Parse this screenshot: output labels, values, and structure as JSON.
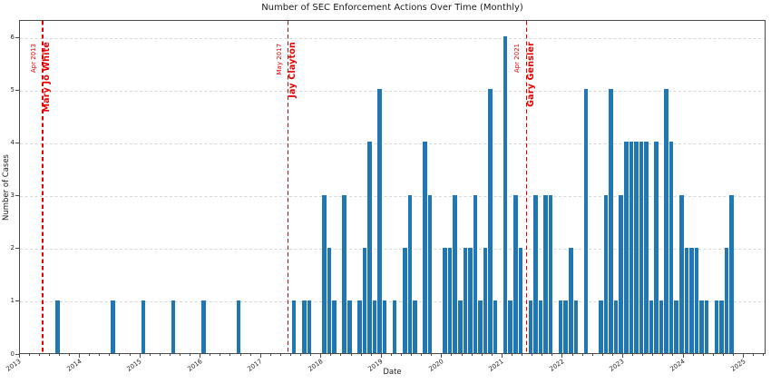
{
  "figure": {
    "title": "Number of SEC Enforcement Actions Over Time (Monthly)",
    "xlabel": "Date",
    "ylabel": "Number of Cases"
  },
  "colors": {
    "bar": "#1f77b4",
    "marker": "#e60000",
    "grid": "#d7d7d7",
    "spine": "#4a4a4a",
    "background": "#ffffff"
  },
  "chart_data": {
    "type": "bar",
    "title": "Number of SEC Enforcement Actions Over Time (Monthly)",
    "xlabel": "Date",
    "ylabel": "Number of Cases",
    "grid": "horizontal dashed gridlines only",
    "legend_position": "none",
    "x_axis": {
      "start_month": "2013-01",
      "total_months": 148.4,
      "year_ticks": [
        2013,
        2014,
        2015,
        2016,
        2017,
        2018,
        2019,
        2020,
        2021,
        2022,
        2023,
        2024,
        2025
      ],
      "minor_tick_every_months": 2
    },
    "y_axis": {
      "ticks": [
        0,
        1,
        2,
        3,
        4,
        5,
        6
      ],
      "max": 6.33
    },
    "monthly_counts": [
      [
        "2013-08",
        1
      ],
      [
        "2014-07",
        1
      ],
      [
        "2015-01",
        1
      ],
      [
        "2015-07",
        1
      ],
      [
        "2016-01",
        1
      ],
      [
        "2016-08",
        1
      ],
      [
        "2017-07",
        1
      ],
      [
        "2017-09",
        1
      ],
      [
        "2017-10",
        1
      ],
      [
        "2018-01",
        3
      ],
      [
        "2018-02",
        2
      ],
      [
        "2018-03",
        1
      ],
      [
        "2018-05",
        3
      ],
      [
        "2018-06",
        1
      ],
      [
        "2018-08",
        1
      ],
      [
        "2018-09",
        2
      ],
      [
        "2018-10",
        4
      ],
      [
        "2018-11",
        1
      ],
      [
        "2018-12",
        5
      ],
      [
        "2019-01",
        1
      ],
      [
        "2019-03",
        1
      ],
      [
        "2019-05",
        2
      ],
      [
        "2019-06",
        3
      ],
      [
        "2019-07",
        1
      ],
      [
        "2019-09",
        4
      ],
      [
        "2019-10",
        3
      ],
      [
        "2020-01",
        2
      ],
      [
        "2020-02",
        2
      ],
      [
        "2020-03",
        3
      ],
      [
        "2020-04",
        1
      ],
      [
        "2020-05",
        2
      ],
      [
        "2020-06",
        2
      ],
      [
        "2020-07",
        3
      ],
      [
        "2020-08",
        1
      ],
      [
        "2020-09",
        2
      ],
      [
        "2020-10",
        5
      ],
      [
        "2020-11",
        1
      ],
      [
        "2021-01",
        6
      ],
      [
        "2021-02",
        1
      ],
      [
        "2021-03",
        3
      ],
      [
        "2021-04",
        2
      ],
      [
        "2021-06",
        1
      ],
      [
        "2021-07",
        3
      ],
      [
        "2021-08",
        1
      ],
      [
        "2021-09",
        3
      ],
      [
        "2021-10",
        3
      ],
      [
        "2021-12",
        1
      ],
      [
        "2022-01",
        1
      ],
      [
        "2022-02",
        2
      ],
      [
        "2022-03",
        1
      ],
      [
        "2022-05",
        5
      ],
      [
        "2022-08",
        1
      ],
      [
        "2022-09",
        3
      ],
      [
        "2022-10",
        5
      ],
      [
        "2022-11",
        1
      ],
      [
        "2022-12",
        3
      ],
      [
        "2023-01",
        4
      ],
      [
        "2023-02",
        4
      ],
      [
        "2023-03",
        4
      ],
      [
        "2023-04",
        4
      ],
      [
        "2023-05",
        4
      ],
      [
        "2023-06",
        1
      ],
      [
        "2023-07",
        4
      ],
      [
        "2023-08",
        1
      ],
      [
        "2023-09",
        5
      ],
      [
        "2023-10",
        4
      ],
      [
        "2023-11",
        1
      ],
      [
        "2023-12",
        3
      ],
      [
        "2024-01",
        2
      ],
      [
        "2024-02",
        2
      ],
      [
        "2024-03",
        2
      ],
      [
        "2024-04",
        1
      ],
      [
        "2024-05",
        1
      ],
      [
        "2024-07",
        1
      ],
      [
        "2024-08",
        1
      ],
      [
        "2024-09",
        2
      ],
      [
        "2024-10",
        3
      ]
    ],
    "chair_markers": [
      {
        "date_label": "Apr 2013",
        "name": "Mary Jo White",
        "months_from_2013_01": 4.47
      },
      {
        "date_label": "May 2017",
        "name": "Jay Clayton",
        "months_from_2013_01": 53.3
      },
      {
        "date_label": "Apr 2021",
        "name": "Gary Gensler",
        "months_from_2013_01": 100.7
      }
    ]
  }
}
